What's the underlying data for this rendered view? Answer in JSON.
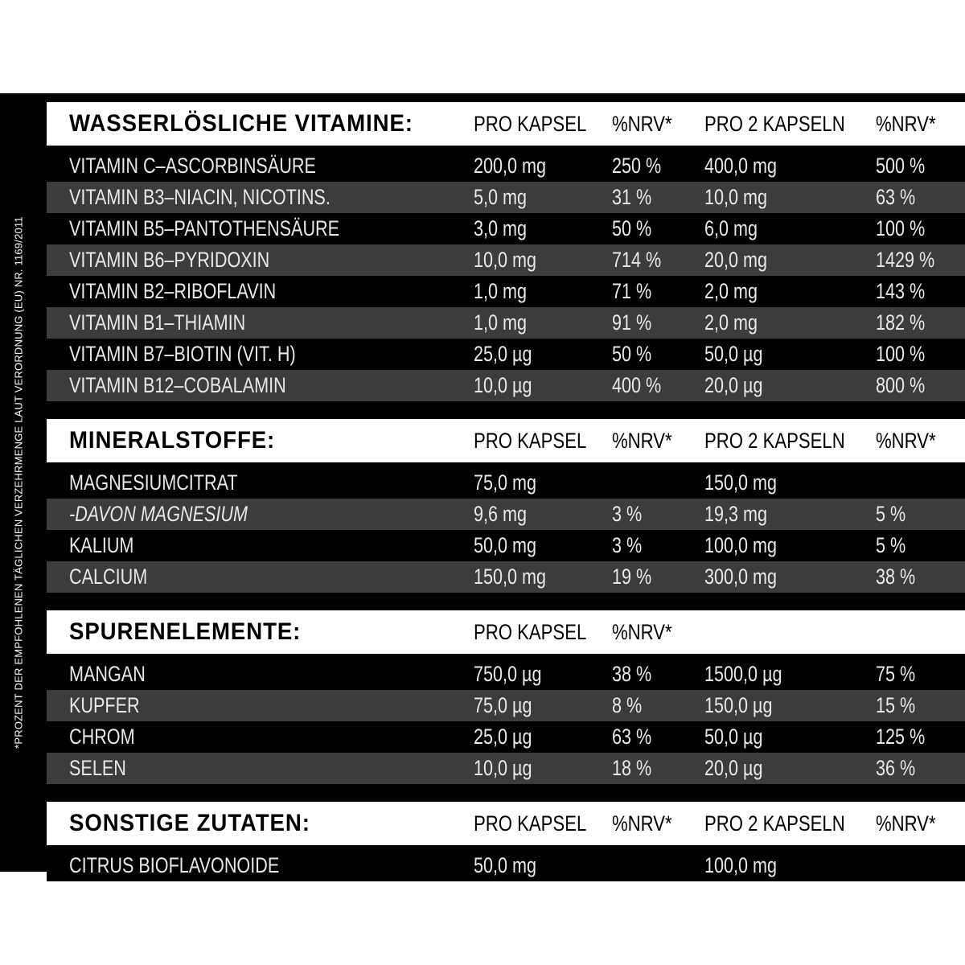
{
  "side_note": "*PROZENT DER EMPFOHLENEN TÄGLICHEN VERZEHRMENGE LAUT VERORDNUNG (EU) NR. 1169/2011",
  "sections": [
    {
      "title": "WASSERLÖSLICHE VITAMINE:",
      "columns": [
        "PRO KAPSEL",
        "%NRV*",
        "PRO 2 KAPSELN",
        "%NRV*"
      ],
      "rows": [
        [
          "VITAMIN C–ASCORBINSÄURE",
          "200,0 mg",
          "250 %",
          "400,0 mg",
          "500 %"
        ],
        [
          "VITAMIN B3–NIACIN, NICOTINS.",
          "5,0 mg",
          "31 %",
          "10,0 mg",
          "63 %"
        ],
        [
          "VITAMIN B5–PANTOTHENSÄURE",
          "3,0 mg",
          "50 %",
          "6,0 mg",
          "100 %"
        ],
        [
          "VITAMIN B6–PYRIDOXIN",
          "10,0 mg",
          "714 %",
          "20,0 mg",
          "1429 %"
        ],
        [
          "VITAMIN B2–RIBOFLAVIN",
          "1,0 mg",
          "71 %",
          "2,0 mg",
          "143 %"
        ],
        [
          "VITAMIN B1–THIAMIN",
          "1,0 mg",
          "91 %",
          "2,0 mg",
          "182 %"
        ],
        [
          "VITAMIN B7–BIOTIN (VIT. H)",
          "25,0 µg",
          "50 %",
          "50,0 µg",
          "100 %"
        ],
        [
          "VITAMIN B12–COBALAMIN",
          "10,0 µg",
          "400 %",
          "20,0 µg",
          "800 %"
        ]
      ]
    },
    {
      "title": "MINERALSTOFFE:",
      "columns": [
        "PRO KAPSEL",
        "%NRV*",
        "PRO 2 KAPSELN",
        "%NRV*"
      ],
      "rows": [
        [
          "MAGNESIUMCITRAT",
          "75,0 mg",
          "",
          "150,0 mg",
          ""
        ],
        [
          "-DAVON MAGNESIUM",
          "9,6 mg",
          "3 %",
          "19,3 mg",
          "5 %"
        ],
        [
          "KALIUM",
          "50,0 mg",
          "3 %",
          "100,0 mg",
          "5 %"
        ],
        [
          "CALCIUM",
          "150,0 mg",
          "19 %",
          "300,0 mg",
          "38 %"
        ]
      ]
    },
    {
      "title": "SPURENELEMENTE:",
      "columns": [
        "PRO KAPSEL",
        "%NRV*",
        "",
        ""
      ],
      "rows": [
        [
          "MANGAN",
          "750,0 µg",
          "38 %",
          "1500,0 µg",
          "75 %"
        ],
        [
          "KUPFER",
          "75,0 µg",
          "8 %",
          "150,0 µg",
          "15 %"
        ],
        [
          "CHROM",
          "25,0 µg",
          "63 %",
          "50,0 µg",
          "125 %"
        ],
        [
          "SELEN",
          "10,0 µg",
          "18 %",
          "20,0 µg",
          "36 %"
        ]
      ]
    },
    {
      "title": "SONSTIGE ZUTATEN:",
      "columns": [
        "PRO KAPSEL",
        "%NRV*",
        "PRO 2 KAPSELN",
        "%NRV*"
      ],
      "rows": [
        [
          "CITRUS BIOFLAVONOIDE",
          "50,0 mg",
          "",
          "100,0 mg",
          ""
        ]
      ]
    }
  ]
}
